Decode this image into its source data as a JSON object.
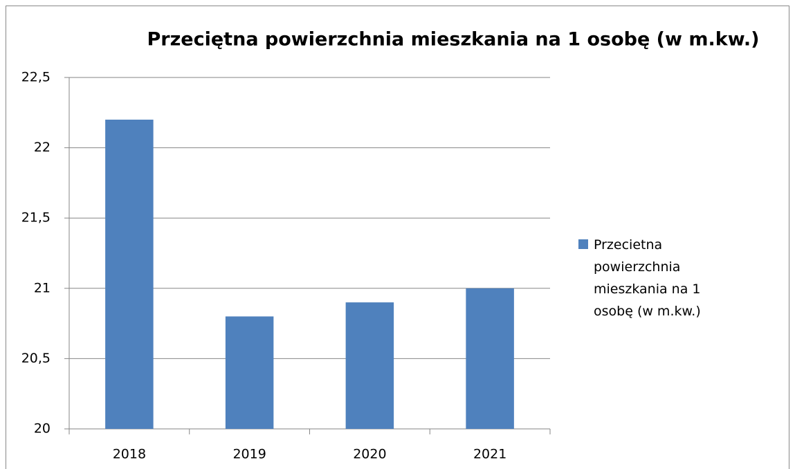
{
  "chart_data": {
    "type": "bar",
    "title": "Przeciętna powierzchnia mieszkania na 1 osobę (w m.kw.)",
    "categories": [
      "2018",
      "2019",
      "2020",
      "2021"
    ],
    "series": [
      {
        "name": "Przecietna powierzchnia mieszkania na 1 osobę (w m.kw.)",
        "color": "#4f81bd",
        "values": [
          22.2,
          20.8,
          20.9,
          21.0
        ]
      }
    ],
    "ylim": [
      20,
      22.5
    ],
    "yticks": [
      20,
      {
        "value": 20.5,
        "label": "20,5"
      },
      21,
      {
        "value": 21.5,
        "label": "21,5"
      },
      22,
      {
        "value": 22.5,
        "label": "22,5"
      }
    ],
    "grid": true,
    "legend": "right"
  }
}
